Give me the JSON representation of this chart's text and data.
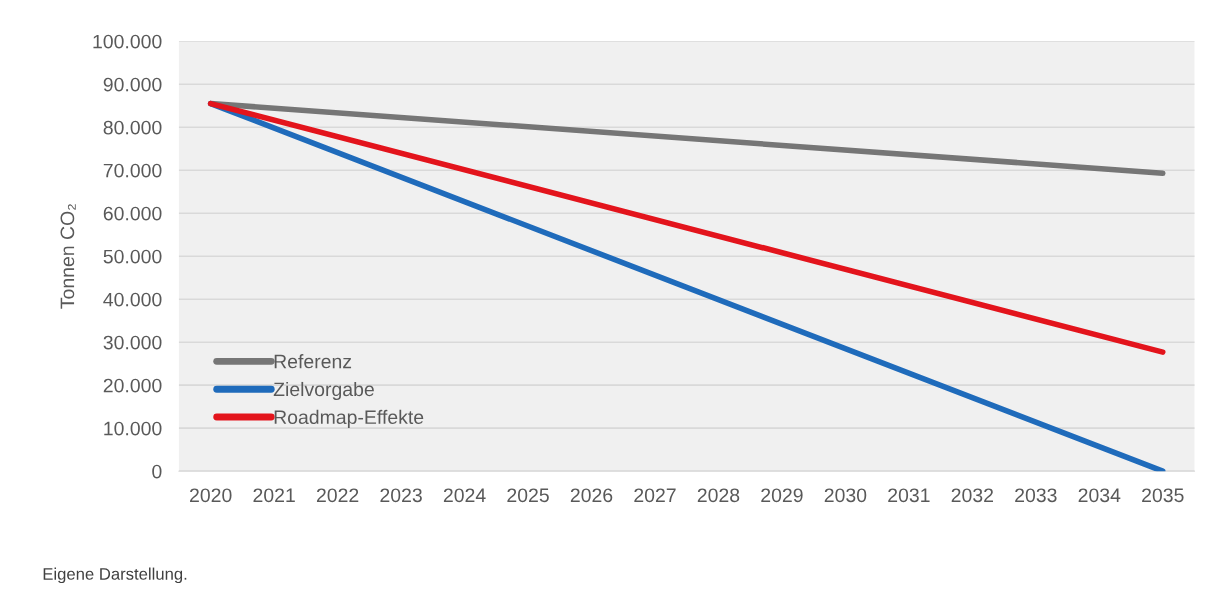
{
  "chart_data": {
    "type": "line",
    "ylabel": "Tonnen CO₂",
    "series": [
      {
        "name": "Referenz",
        "color": "#767676",
        "values": [
          85500,
          69300
        ]
      },
      {
        "name": "Zielvorgabe",
        "color": "#1f6bbb",
        "values": [
          85500,
          0
        ]
      },
      {
        "name": "Roadmap-Effekte",
        "color": "#e3141c",
        "values": [
          85500,
          27700
        ]
      }
    ],
    "x": [
      2020,
      2035
    ],
    "xlim": [
      2019.5,
      2035.5
    ],
    "xticks": [
      2020,
      2021,
      2022,
      2023,
      2024,
      2025,
      2026,
      2027,
      2028,
      2029,
      2030,
      2031,
      2032,
      2033,
      2034,
      2035
    ],
    "ylim": [
      0,
      100000
    ],
    "yticks": [
      0,
      {
        "value": 10000,
        "label": "10.000"
      },
      {
        "value": 20000,
        "label": "20.000"
      },
      {
        "value": 30000,
        "label": "30.000"
      },
      {
        "value": 40000,
        "label": "40.000"
      },
      {
        "value": 50000,
        "label": "50.000"
      },
      {
        "value": 60000,
        "label": "60.000"
      },
      {
        "value": 70000,
        "label": "70.000"
      },
      {
        "value": 80000,
        "label": "80.000"
      },
      {
        "value": 90000,
        "label": "90.000"
      },
      {
        "value": 100000,
        "label": "100.000"
      }
    ],
    "grid": "y",
    "legend": "bottom left",
    "marker": "none",
    "line_style": "solid",
    "annotations": [
      "Eigene Darstellung."
    ]
  }
}
